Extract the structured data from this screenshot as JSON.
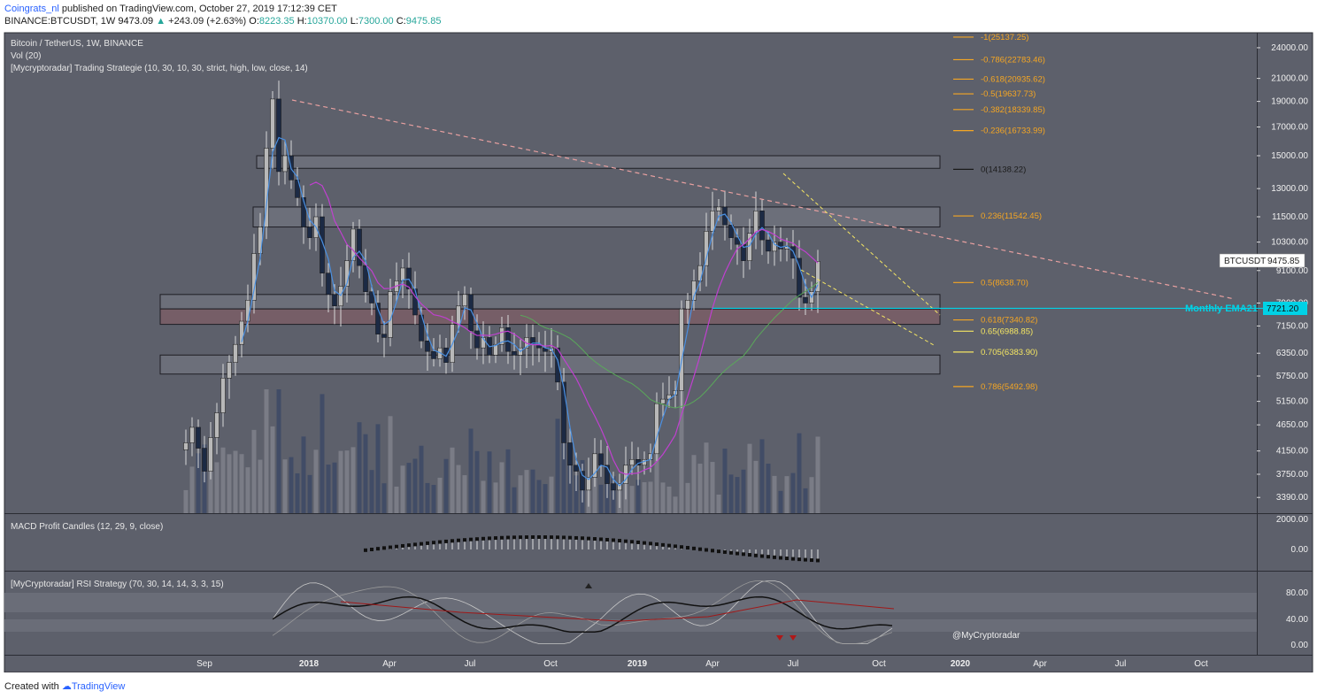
{
  "header": {
    "user": "Coingrats_nl",
    "published_text": "published on TradingView.com, October 27, 2019 17:12:39 CET",
    "symbol_line": "BINANCE:BTCUSDT, 1W",
    "last": "9473.09",
    "change": "+243.09 (+2.63%)",
    "o_label": "O:",
    "o": "8223.35",
    "h_label": "H:",
    "h": "10370.00",
    "l_label": "L:",
    "l": "7300.00",
    "c_label": "C:",
    "c": "9475.85"
  },
  "legend": {
    "title": "Bitcoin / TetherUS, 1W, BINANCE",
    "vol": "Vol (20)",
    "strategy": "[Mycryptoradar] Trading Strategie (10, 30, 10, 30, strict, high, low, close, 14)",
    "macd": "MACD Profit Candles (12, 29, 9, close)",
    "rsi": "[MyCryptoradar] RSI Strategy (70, 30, 14, 14, 3, 3, 15)"
  },
  "watermark": "@MyCryptoradar",
  "footer": {
    "created": "Created with",
    "brand": "TradingView"
  },
  "colors": {
    "panel_bg": "#5d606b",
    "up_candle": "#b8b8b8",
    "down_candle": "#1c2a44",
    "fib_orange": "#f5a623",
    "fib_yellow": "#f5e663",
    "ema_cyan": "#00d2e6",
    "trend_pink": "#e8a0a0",
    "magenta": "#c040d0",
    "blue_line": "#4a90e2",
    "green_line": "#5aa85a"
  },
  "chart_data": {
    "type": "candlestick",
    "symbol": "BTCUSDT",
    "price_tag": "9475.85",
    "ema_label": "Monthly EMA21",
    "ema_value": "7721.20",
    "price_axis_ticks": [
      "24000.00",
      "21000.00",
      "19000.00",
      "17000.00",
      "15000.00",
      "13000.00",
      "11500.00",
      "10300.00",
      "9100.00",
      "7900.00",
      "7150.00",
      "6350.00",
      "5750.00",
      "5150.00",
      "4650.00",
      "4150.00",
      "3750.00",
      "3390.00"
    ],
    "time_axis_ticks": [
      "Sep",
      "2018",
      "Apr",
      "Jul",
      "Oct",
      "2019",
      "Apr",
      "Jul",
      "Oct",
      "2020",
      "Apr",
      "Jul",
      "Oct"
    ],
    "macd_axis_ticks": [
      "2000.00",
      "0.00"
    ],
    "rsi_axis_ticks": [
      "80.00",
      "40.00",
      "0.00"
    ],
    "fib_levels": [
      {
        "label": "-1(25137.25)",
        "price": 25137.25,
        "color": "orange"
      },
      {
        "label": "-0.786(22783.46)",
        "price": 22783.46,
        "color": "orange"
      },
      {
        "label": "-0.618(20935.62)",
        "price": 20935.62,
        "color": "orange"
      },
      {
        "label": "-0.5(19637.73)",
        "price": 19637.73,
        "color": "orange"
      },
      {
        "label": "-0.382(18339.85)",
        "price": 18339.85,
        "color": "orange"
      },
      {
        "label": "-0.236(16733.99)",
        "price": 16733.99,
        "color": "orange"
      },
      {
        "label": "0(14138.22)",
        "price": 14138.22,
        "color": "dark"
      },
      {
        "label": "0.236(11542.45)",
        "price": 11542.45,
        "color": "orange"
      },
      {
        "label": "0.5(8638.70)",
        "price": 8638.7,
        "color": "orange"
      },
      {
        "label": "0.618(7340.82)",
        "price": 7340.82,
        "color": "orange"
      },
      {
        "label": "0.65(6988.85)",
        "price": 6988.85,
        "color": "yellow"
      },
      {
        "label": "0.705(6383.90)",
        "price": 6383.9,
        "color": "yellow"
      },
      {
        "label": "0.786(5492.98)",
        "price": 5492.98,
        "color": "orange"
      }
    ],
    "zones": [
      {
        "from": 14200,
        "to": 15000
      },
      {
        "from": 11000,
        "to": 12000
      },
      {
        "from": 7700,
        "to": 8200
      },
      {
        "from": 7200,
        "to": 7700
      },
      {
        "from": 5800,
        "to": 6300
      }
    ],
    "weekly_closes": [
      4300,
      4600,
      4200,
      3800,
      4400,
      4900,
      5700,
      6100,
      6600,
      7300,
      8000,
      9800,
      11000,
      15500,
      19200,
      14000,
      15000,
      13500,
      12500,
      11000,
      10500,
      11500,
      9000,
      8200,
      7800,
      8500,
      9500,
      10900,
      9300,
      8300,
      7900,
      6900,
      6800,
      8300,
      8700,
      9200,
      8400,
      7500,
      6700,
      6400,
      6200,
      6500,
      6100,
      7200,
      7800,
      8200,
      7000,
      6500,
      6800,
      6300,
      6600,
      7100,
      6400,
      6300,
      6500,
      6800,
      6600,
      6500,
      6400,
      6500,
      5600,
      4300,
      3900,
      3800,
      3500,
      3700,
      4100,
      3900,
      3600,
      3500,
      3600,
      3900,
      4000,
      3900,
      4000,
      4100,
      5100,
      5200,
      5300,
      5400,
      7700,
      8000,
      8700,
      9300,
      10800,
      11800,
      12000,
      11100,
      10500,
      10200,
      9500,
      10700,
      11800,
      10400,
      9900,
      10300,
      10000,
      10100,
      9600,
      8100,
      7900,
      8300,
      9475
    ]
  }
}
